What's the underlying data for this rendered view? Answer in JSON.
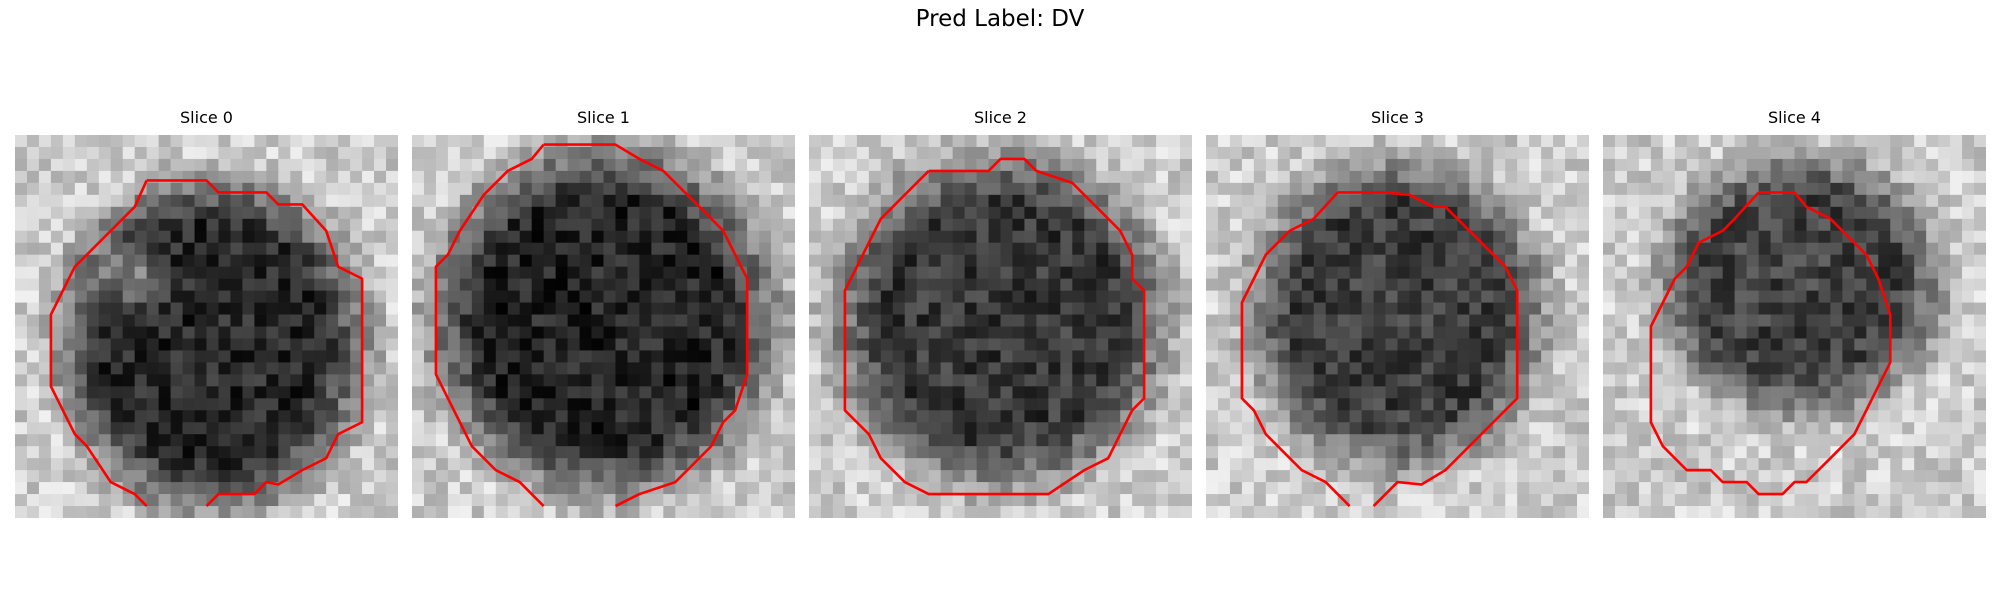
{
  "title": "Pred Label: DV",
  "contour_color": "#ff0000",
  "panels": [
    {
      "label": "Slice 0"
    },
    {
      "label": "Slice 1"
    },
    {
      "label": "Slice 2"
    },
    {
      "label": "Slice 3"
    },
    {
      "label": "Slice 4"
    }
  ]
}
